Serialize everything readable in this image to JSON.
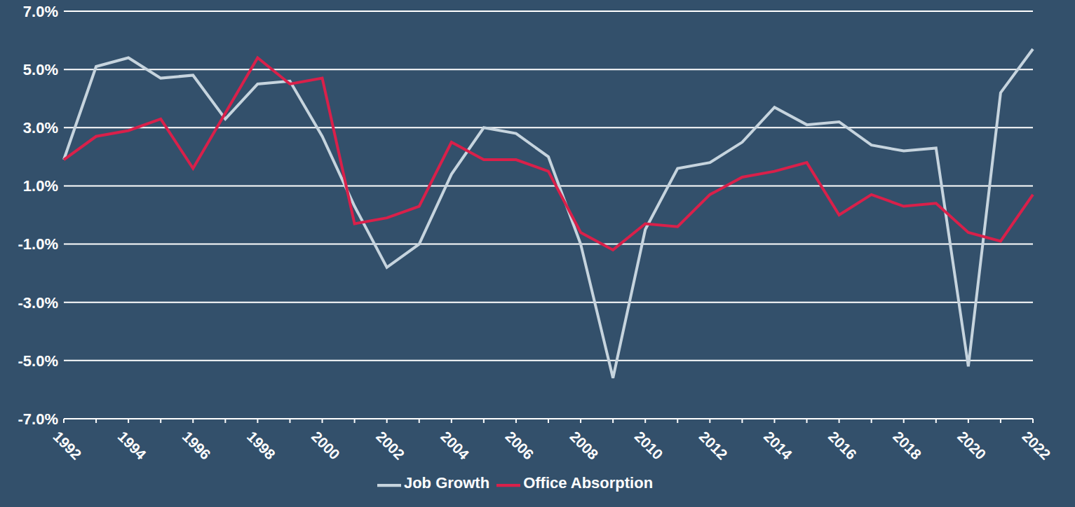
{
  "chart_data": {
    "type": "line",
    "categories": [
      "1992",
      null,
      "1994",
      null,
      "1996",
      null,
      "1998",
      null,
      "2000",
      null,
      "2002",
      null,
      "2004",
      null,
      "2006",
      null,
      "2008",
      null,
      "2010",
      null,
      "2012",
      null,
      "2014",
      null,
      "2016",
      null,
      "2018",
      null,
      "2020",
      null,
      "2022"
    ],
    "series": [
      {
        "name": "Job Growth",
        "color": "#c6d4de",
        "values": [
          1.9,
          5.1,
          5.4,
          4.7,
          4.8,
          3.3,
          4.5,
          4.6,
          2.7,
          0.3,
          -1.8,
          -1.0,
          1.4,
          3.0,
          2.8,
          2.0,
          -1.0,
          -5.6,
          -0.5,
          1.6,
          1.8,
          2.5,
          3.7,
          3.1,
          3.2,
          2.4,
          2.2,
          2.3,
          -5.2,
          4.2,
          5.7
        ]
      },
      {
        "name": "Office Absorption",
        "color": "#d9204a",
        "values": [
          1.9,
          2.7,
          2.9,
          3.3,
          1.6,
          3.5,
          5.4,
          4.5,
          4.7,
          -0.3,
          -0.1,
          0.3,
          2.5,
          1.9,
          1.9,
          1.5,
          -0.6,
          -1.2,
          -0.3,
          -0.4,
          0.7,
          1.3,
          1.5,
          1.8,
          0.0,
          0.7,
          0.3,
          0.4,
          -0.6,
          -0.9,
          0.7
        ]
      }
    ],
    "ylim": [
      -7,
      7
    ],
    "yticks": [
      {
        "value": -7,
        "label": "-7.0%"
      },
      {
        "value": -5,
        "label": "-5.0%"
      },
      {
        "value": -3,
        "label": "-3.0%"
      },
      {
        "value": -1,
        "label": "-1.0%"
      },
      {
        "value": 1,
        "label": "1.0%"
      },
      {
        "value": 3,
        "label": "3.0%"
      },
      {
        "value": 5,
        "label": "5.0%"
      },
      {
        "value": 7,
        "label": "7.0%"
      }
    ],
    "grid": true,
    "legend": "bottom"
  }
}
